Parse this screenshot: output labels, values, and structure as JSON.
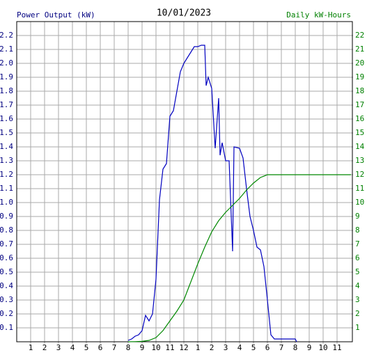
{
  "chart_data": {
    "type": "line",
    "title": "10/01/2023",
    "ylabel": "Power Output (kW)",
    "y2label": "Daily kW-Hours",
    "xlim": [
      0,
      24
    ],
    "xticks": [
      {
        "value": 1,
        "label": "1"
      },
      {
        "value": 2,
        "label": "2"
      },
      {
        "value": 3,
        "label": "3"
      },
      {
        "value": 4,
        "label": "4"
      },
      {
        "value": 5,
        "label": "5"
      },
      {
        "value": 6,
        "label": "6"
      },
      {
        "value": 7,
        "label": "7"
      },
      {
        "value": 8,
        "label": "8"
      },
      {
        "value": 9,
        "label": "9"
      },
      {
        "value": 10,
        "label": "10"
      },
      {
        "value": 11,
        "label": "11"
      },
      {
        "value": 12,
        "label": "12"
      },
      {
        "value": 13,
        "label": "1"
      },
      {
        "value": 14,
        "label": "2"
      },
      {
        "value": 15,
        "label": "3"
      },
      {
        "value": 16,
        "label": "4"
      },
      {
        "value": 17,
        "label": "5"
      },
      {
        "value": 18,
        "label": "6"
      },
      {
        "value": 19,
        "label": "7"
      },
      {
        "value": 20,
        "label": "8"
      },
      {
        "value": 21,
        "label": "9"
      },
      {
        "value": 22,
        "label": "10"
      },
      {
        "value": 23,
        "label": "11"
      }
    ],
    "ylim": [
      0,
      2.3
    ],
    "yticks": [
      0.1,
      0.2,
      0.3,
      0.4,
      0.5,
      0.6,
      0.7,
      0.8,
      0.9,
      {
        "value": 1,
        "label": "1.0"
      },
      1.1,
      1.2,
      1.3,
      1.4,
      1.5,
      1.6,
      1.7,
      1.8,
      1.9,
      {
        "value": 2,
        "label": "2.0"
      },
      2.1,
      2.2
    ],
    "y2lim": [
      0,
      23
    ],
    "y2ticks": [
      1,
      2,
      3,
      4,
      5,
      6,
      7,
      8,
      9,
      10,
      11,
      12,
      13,
      14,
      15,
      16,
      17,
      18,
      19,
      20,
      21,
      22
    ],
    "grid": true,
    "series": [
      {
        "color": "#0000c0",
        "x": [
          8,
          8.25,
          8.5,
          8.75,
          9,
          9.25,
          9.5,
          9.75,
          10,
          10.25,
          10.5,
          10.75,
          11,
          11.25,
          11.5,
          11.75,
          12,
          12.25,
          12.5,
          12.75,
          13,
          13.25,
          13.5,
          13.6,
          13.75,
          14,
          14.25,
          14.5,
          14.6,
          14.75,
          15,
          15.25,
          15.5,
          15.6,
          16,
          16.25,
          16.5,
          16.75,
          17,
          17.25,
          17.5,
          17.75,
          18,
          18.25,
          18.5,
          19,
          19.5,
          20,
          20.1
        ],
        "values": [
          0.01,
          0.02,
          0.04,
          0.05,
          0.08,
          0.19,
          0.15,
          0.2,
          0.45,
          1.02,
          1.24,
          1.28,
          1.62,
          1.66,
          1.8,
          1.94,
          2.0,
          2.04,
          2.08,
          2.12,
          2.12,
          2.13,
          2.13,
          1.84,
          1.9,
          1.82,
          1.39,
          1.75,
          1.34,
          1.43,
          1.3,
          1.3,
          0.65,
          1.4,
          1.39,
          1.32,
          1.1,
          0.9,
          0.8,
          0.68,
          0.66,
          0.54,
          0.3,
          0.05,
          0.02,
          0.02,
          0.02,
          0.02,
          0
        ]
      },
      {
        "color": "#008800",
        "axis": "y2",
        "x": [
          8,
          8.5,
          9,
          9.5,
          10,
          10.5,
          11,
          11.5,
          12,
          12.5,
          13,
          13.5,
          14,
          14.5,
          15,
          15.5,
          16,
          16.5,
          17,
          17.5,
          18,
          24
        ],
        "values": [
          0,
          0.01,
          0.03,
          0.1,
          0.3,
          0.8,
          1.5,
          2.2,
          3.0,
          4.3,
          5.6,
          6.8,
          7.9,
          8.7,
          9.3,
          9.8,
          10.3,
          10.9,
          11.4,
          11.8,
          12.0,
          12.0
        ]
      }
    ]
  }
}
